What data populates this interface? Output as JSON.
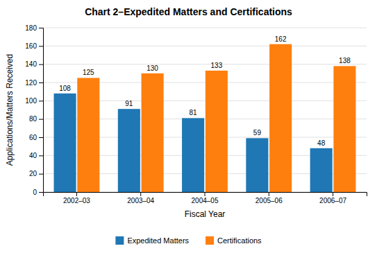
{
  "chart_data": {
    "type": "bar",
    "title": "Chart 2–Expedited Matters and Certifications",
    "xlabel": "Fiscal Year",
    "ylabel": "Applications/Matters Received",
    "categories": [
      "2002–03",
      "2003–04",
      "2004–05",
      "2005–06",
      "2006–07"
    ],
    "series": [
      {
        "name": "Expedited Matters",
        "values": [
          108,
          91,
          81,
          59,
          48
        ]
      },
      {
        "name": "Certifications",
        "values": [
          125,
          130,
          133,
          162,
          138
        ]
      }
    ],
    "ylim": [
      0,
      180
    ],
    "yticks": [
      0,
      20,
      40,
      60,
      80,
      100,
      120,
      140,
      160,
      180
    ],
    "grid": true,
    "legend": "bottom",
    "data_labels": true
  }
}
